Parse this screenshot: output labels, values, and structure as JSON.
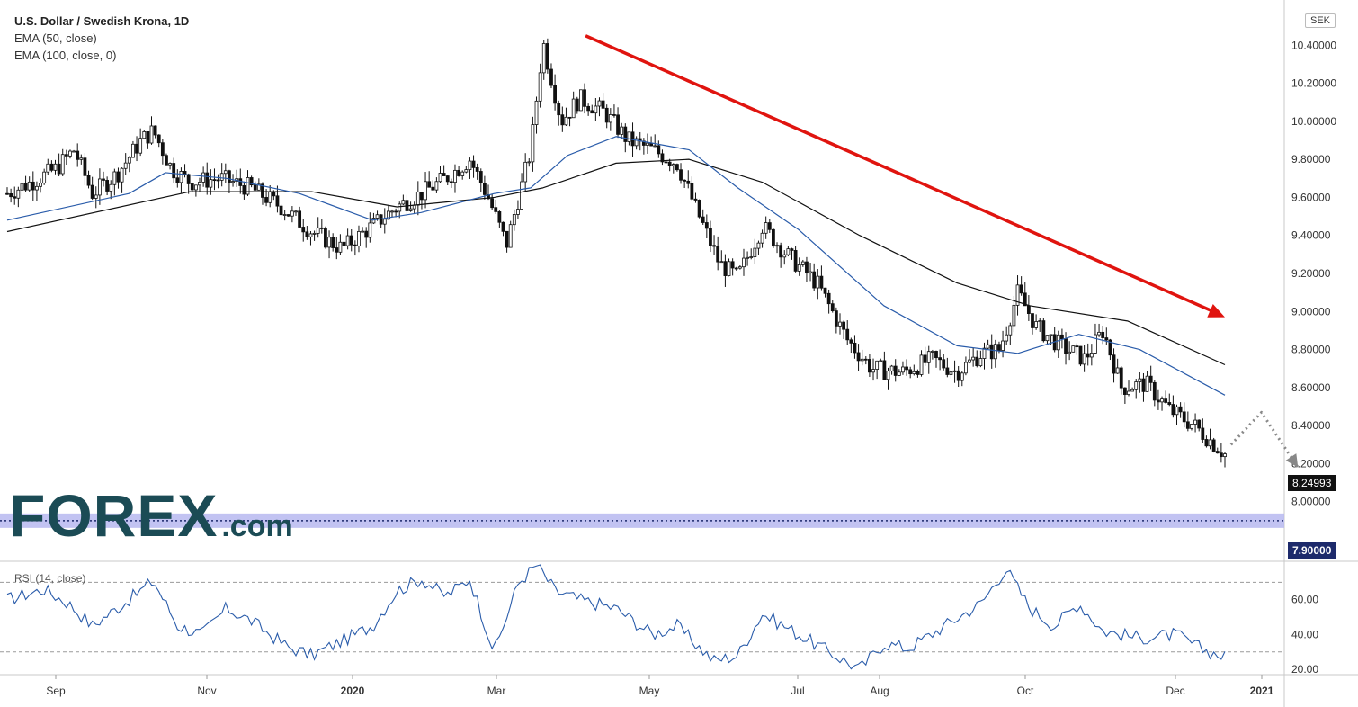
{
  "chart": {
    "title": "U.S. Dollar / Swedish Krona, 1D",
    "indicators": [
      "EMA (50, close)",
      "EMA (100, close, 0)"
    ],
    "currency": "SEK",
    "last_price_label": "8.24993",
    "support_level_label": "7.90000",
    "rsi_label": "RSI (14, close)",
    "logo": {
      "main": "FOREX",
      "suffix": ".com"
    }
  },
  "colors": {
    "ema50": "#2a5caa",
    "ema100": "#111111",
    "trend_arrow": "#e0140f",
    "support_band": "#b7b9f0",
    "support_line": "#1d2a6b",
    "rsi_line": "#2a5caa",
    "forecast_arrow": "#888888",
    "candle": "#111111"
  },
  "chart_data": {
    "type": "candlestick",
    "y_range": [
      7.8,
      10.6
    ],
    "y_ticks": [
      "10.40000",
      "10.20000",
      "10.00000",
      "9.80000",
      "9.60000",
      "9.40000",
      "9.20000",
      "9.00000",
      "8.80000",
      "8.60000",
      "8.40000",
      "8.20000",
      "8.00000"
    ],
    "x_ticks": [
      "Sep",
      "Nov",
      "2020",
      "Mar",
      "May",
      "Jul",
      "Aug",
      "Oct",
      "Dec",
      "2021"
    ],
    "price_path": [
      {
        "t": 0,
        "v": 9.62
      },
      {
        "t": 0.02,
        "v": 9.68
      },
      {
        "t": 0.04,
        "v": 9.75
      },
      {
        "t": 0.055,
        "v": 9.85
      },
      {
        "t": 0.07,
        "v": 9.62
      },
      {
        "t": 0.09,
        "v": 9.72
      },
      {
        "t": 0.11,
        "v": 9.9
      },
      {
        "t": 0.12,
        "v": 9.95
      },
      {
        "t": 0.135,
        "v": 9.75
      },
      {
        "t": 0.15,
        "v": 9.68
      },
      {
        "t": 0.175,
        "v": 9.7
      },
      {
        "t": 0.2,
        "v": 9.65
      },
      {
        "t": 0.225,
        "v": 9.55
      },
      {
        "t": 0.25,
        "v": 9.42
      },
      {
        "t": 0.275,
        "v": 9.33
      },
      {
        "t": 0.3,
        "v": 9.45
      },
      {
        "t": 0.32,
        "v": 9.55
      },
      {
        "t": 0.34,
        "v": 9.62
      },
      {
        "t": 0.36,
        "v": 9.7
      },
      {
        "t": 0.38,
        "v": 9.8
      },
      {
        "t": 0.395,
        "v": 9.6
      },
      {
        "t": 0.41,
        "v": 9.35
      },
      {
        "t": 0.43,
        "v": 9.85
      },
      {
        "t": 0.44,
        "v": 10.42
      },
      {
        "t": 0.455,
        "v": 10.0
      },
      {
        "t": 0.47,
        "v": 10.12
      },
      {
        "t": 0.49,
        "v": 10.05
      },
      {
        "t": 0.51,
        "v": 9.9
      },
      {
        "t": 0.53,
        "v": 9.85
      },
      {
        "t": 0.55,
        "v": 9.78
      },
      {
        "t": 0.565,
        "v": 9.55
      },
      {
        "t": 0.585,
        "v": 9.25
      },
      {
        "t": 0.6,
        "v": 9.18
      },
      {
        "t": 0.62,
        "v": 9.45
      },
      {
        "t": 0.64,
        "v": 9.3
      },
      {
        "t": 0.665,
        "v": 9.15
      },
      {
        "t": 0.69,
        "v": 8.85
      },
      {
        "t": 0.71,
        "v": 8.7
      },
      {
        "t": 0.735,
        "v": 8.68
      },
      {
        "t": 0.76,
        "v": 8.75
      },
      {
        "t": 0.78,
        "v": 8.68
      },
      {
        "t": 0.8,
        "v": 8.78
      },
      {
        "t": 0.815,
        "v": 8.8
      },
      {
        "t": 0.83,
        "v": 9.1
      },
      {
        "t": 0.845,
        "v": 8.92
      },
      {
        "t": 0.865,
        "v": 8.82
      },
      {
        "t": 0.885,
        "v": 8.75
      },
      {
        "t": 0.9,
        "v": 8.9
      },
      {
        "t": 0.915,
        "v": 8.6
      },
      {
        "t": 0.935,
        "v": 8.62
      },
      {
        "t": 0.955,
        "v": 8.48
      },
      {
        "t": 0.975,
        "v": 8.4
      },
      {
        "t": 1.0,
        "v": 8.25
      }
    ],
    "ema50_path": [
      {
        "t": 0,
        "v": 9.48
      },
      {
        "t": 0.1,
        "v": 9.62
      },
      {
        "t": 0.13,
        "v": 9.73
      },
      {
        "t": 0.18,
        "v": 9.7
      },
      {
        "t": 0.24,
        "v": 9.62
      },
      {
        "t": 0.3,
        "v": 9.48
      },
      {
        "t": 0.34,
        "v": 9.52
      },
      {
        "t": 0.4,
        "v": 9.62
      },
      {
        "t": 0.43,
        "v": 9.65
      },
      {
        "t": 0.46,
        "v": 9.82
      },
      {
        "t": 0.5,
        "v": 9.92
      },
      {
        "t": 0.56,
        "v": 9.85
      },
      {
        "t": 0.6,
        "v": 9.65
      },
      {
        "t": 0.65,
        "v": 9.43
      },
      {
        "t": 0.72,
        "v": 9.03
      },
      {
        "t": 0.78,
        "v": 8.82
      },
      {
        "t": 0.83,
        "v": 8.78
      },
      {
        "t": 0.88,
        "v": 8.88
      },
      {
        "t": 0.93,
        "v": 8.8
      },
      {
        "t": 1.0,
        "v": 8.56
      }
    ],
    "ema100_path": [
      {
        "t": 0,
        "v": 9.42
      },
      {
        "t": 0.15,
        "v": 9.63
      },
      {
        "t": 0.25,
        "v": 9.63
      },
      {
        "t": 0.32,
        "v": 9.55
      },
      {
        "t": 0.4,
        "v": 9.6
      },
      {
        "t": 0.44,
        "v": 9.65
      },
      {
        "t": 0.5,
        "v": 9.78
      },
      {
        "t": 0.56,
        "v": 9.8
      },
      {
        "t": 0.62,
        "v": 9.68
      },
      {
        "t": 0.7,
        "v": 9.4
      },
      {
        "t": 0.78,
        "v": 9.15
      },
      {
        "t": 0.84,
        "v": 9.03
      },
      {
        "t": 0.92,
        "v": 8.95
      },
      {
        "t": 1.0,
        "v": 8.72
      }
    ],
    "trend_arrow": {
      "from": {
        "t": 0.475,
        "v": 10.45
      },
      "to": {
        "t": 1.0,
        "v": 8.97
      }
    },
    "support_level": 7.9,
    "forecast_path": [
      {
        "t": 1.005,
        "v": 8.3
      },
      {
        "t": 1.03,
        "v": 8.47
      },
      {
        "t": 1.06,
        "v": 8.18
      }
    ],
    "rsi": {
      "y_range": [
        18,
        80
      ],
      "y_ticks": [
        "60.00",
        "40.00",
        "20.00"
      ],
      "levels": [
        70,
        30
      ],
      "path": [
        {
          "t": 0,
          "v": 60
        },
        {
          "t": 0.03,
          "v": 66
        },
        {
          "t": 0.05,
          "v": 58
        },
        {
          "t": 0.07,
          "v": 45
        },
        {
          "t": 0.1,
          "v": 60
        },
        {
          "t": 0.12,
          "v": 71
        },
        {
          "t": 0.14,
          "v": 45
        },
        {
          "t": 0.16,
          "v": 40
        },
        {
          "t": 0.18,
          "v": 55
        },
        {
          "t": 0.2,
          "v": 48
        },
        {
          "t": 0.23,
          "v": 33
        },
        {
          "t": 0.25,
          "v": 28
        },
        {
          "t": 0.28,
          "v": 38
        },
        {
          "t": 0.3,
          "v": 45
        },
        {
          "t": 0.32,
          "v": 65
        },
        {
          "t": 0.34,
          "v": 72
        },
        {
          "t": 0.36,
          "v": 62
        },
        {
          "t": 0.38,
          "v": 72
        },
        {
          "t": 0.4,
          "v": 30
        },
        {
          "t": 0.42,
          "v": 70
        },
        {
          "t": 0.435,
          "v": 80
        },
        {
          "t": 0.45,
          "v": 65
        },
        {
          "t": 0.47,
          "v": 60
        },
        {
          "t": 0.5,
          "v": 55
        },
        {
          "t": 0.53,
          "v": 40
        },
        {
          "t": 0.55,
          "v": 45
        },
        {
          "t": 0.58,
          "v": 25
        },
        {
          "t": 0.6,
          "v": 28
        },
        {
          "t": 0.62,
          "v": 52
        },
        {
          "t": 0.65,
          "v": 40
        },
        {
          "t": 0.68,
          "v": 28
        },
        {
          "t": 0.7,
          "v": 20
        },
        {
          "t": 0.72,
          "v": 35
        },
        {
          "t": 0.74,
          "v": 32
        },
        {
          "t": 0.77,
          "v": 45
        },
        {
          "t": 0.8,
          "v": 58
        },
        {
          "t": 0.82,
          "v": 78
        },
        {
          "t": 0.84,
          "v": 55
        },
        {
          "t": 0.86,
          "v": 45
        },
        {
          "t": 0.88,
          "v": 58
        },
        {
          "t": 0.9,
          "v": 42
        },
        {
          "t": 0.93,
          "v": 38
        },
        {
          "t": 0.96,
          "v": 40
        },
        {
          "t": 0.98,
          "v": 32
        },
        {
          "t": 1.0,
          "v": 27
        }
      ]
    }
  }
}
